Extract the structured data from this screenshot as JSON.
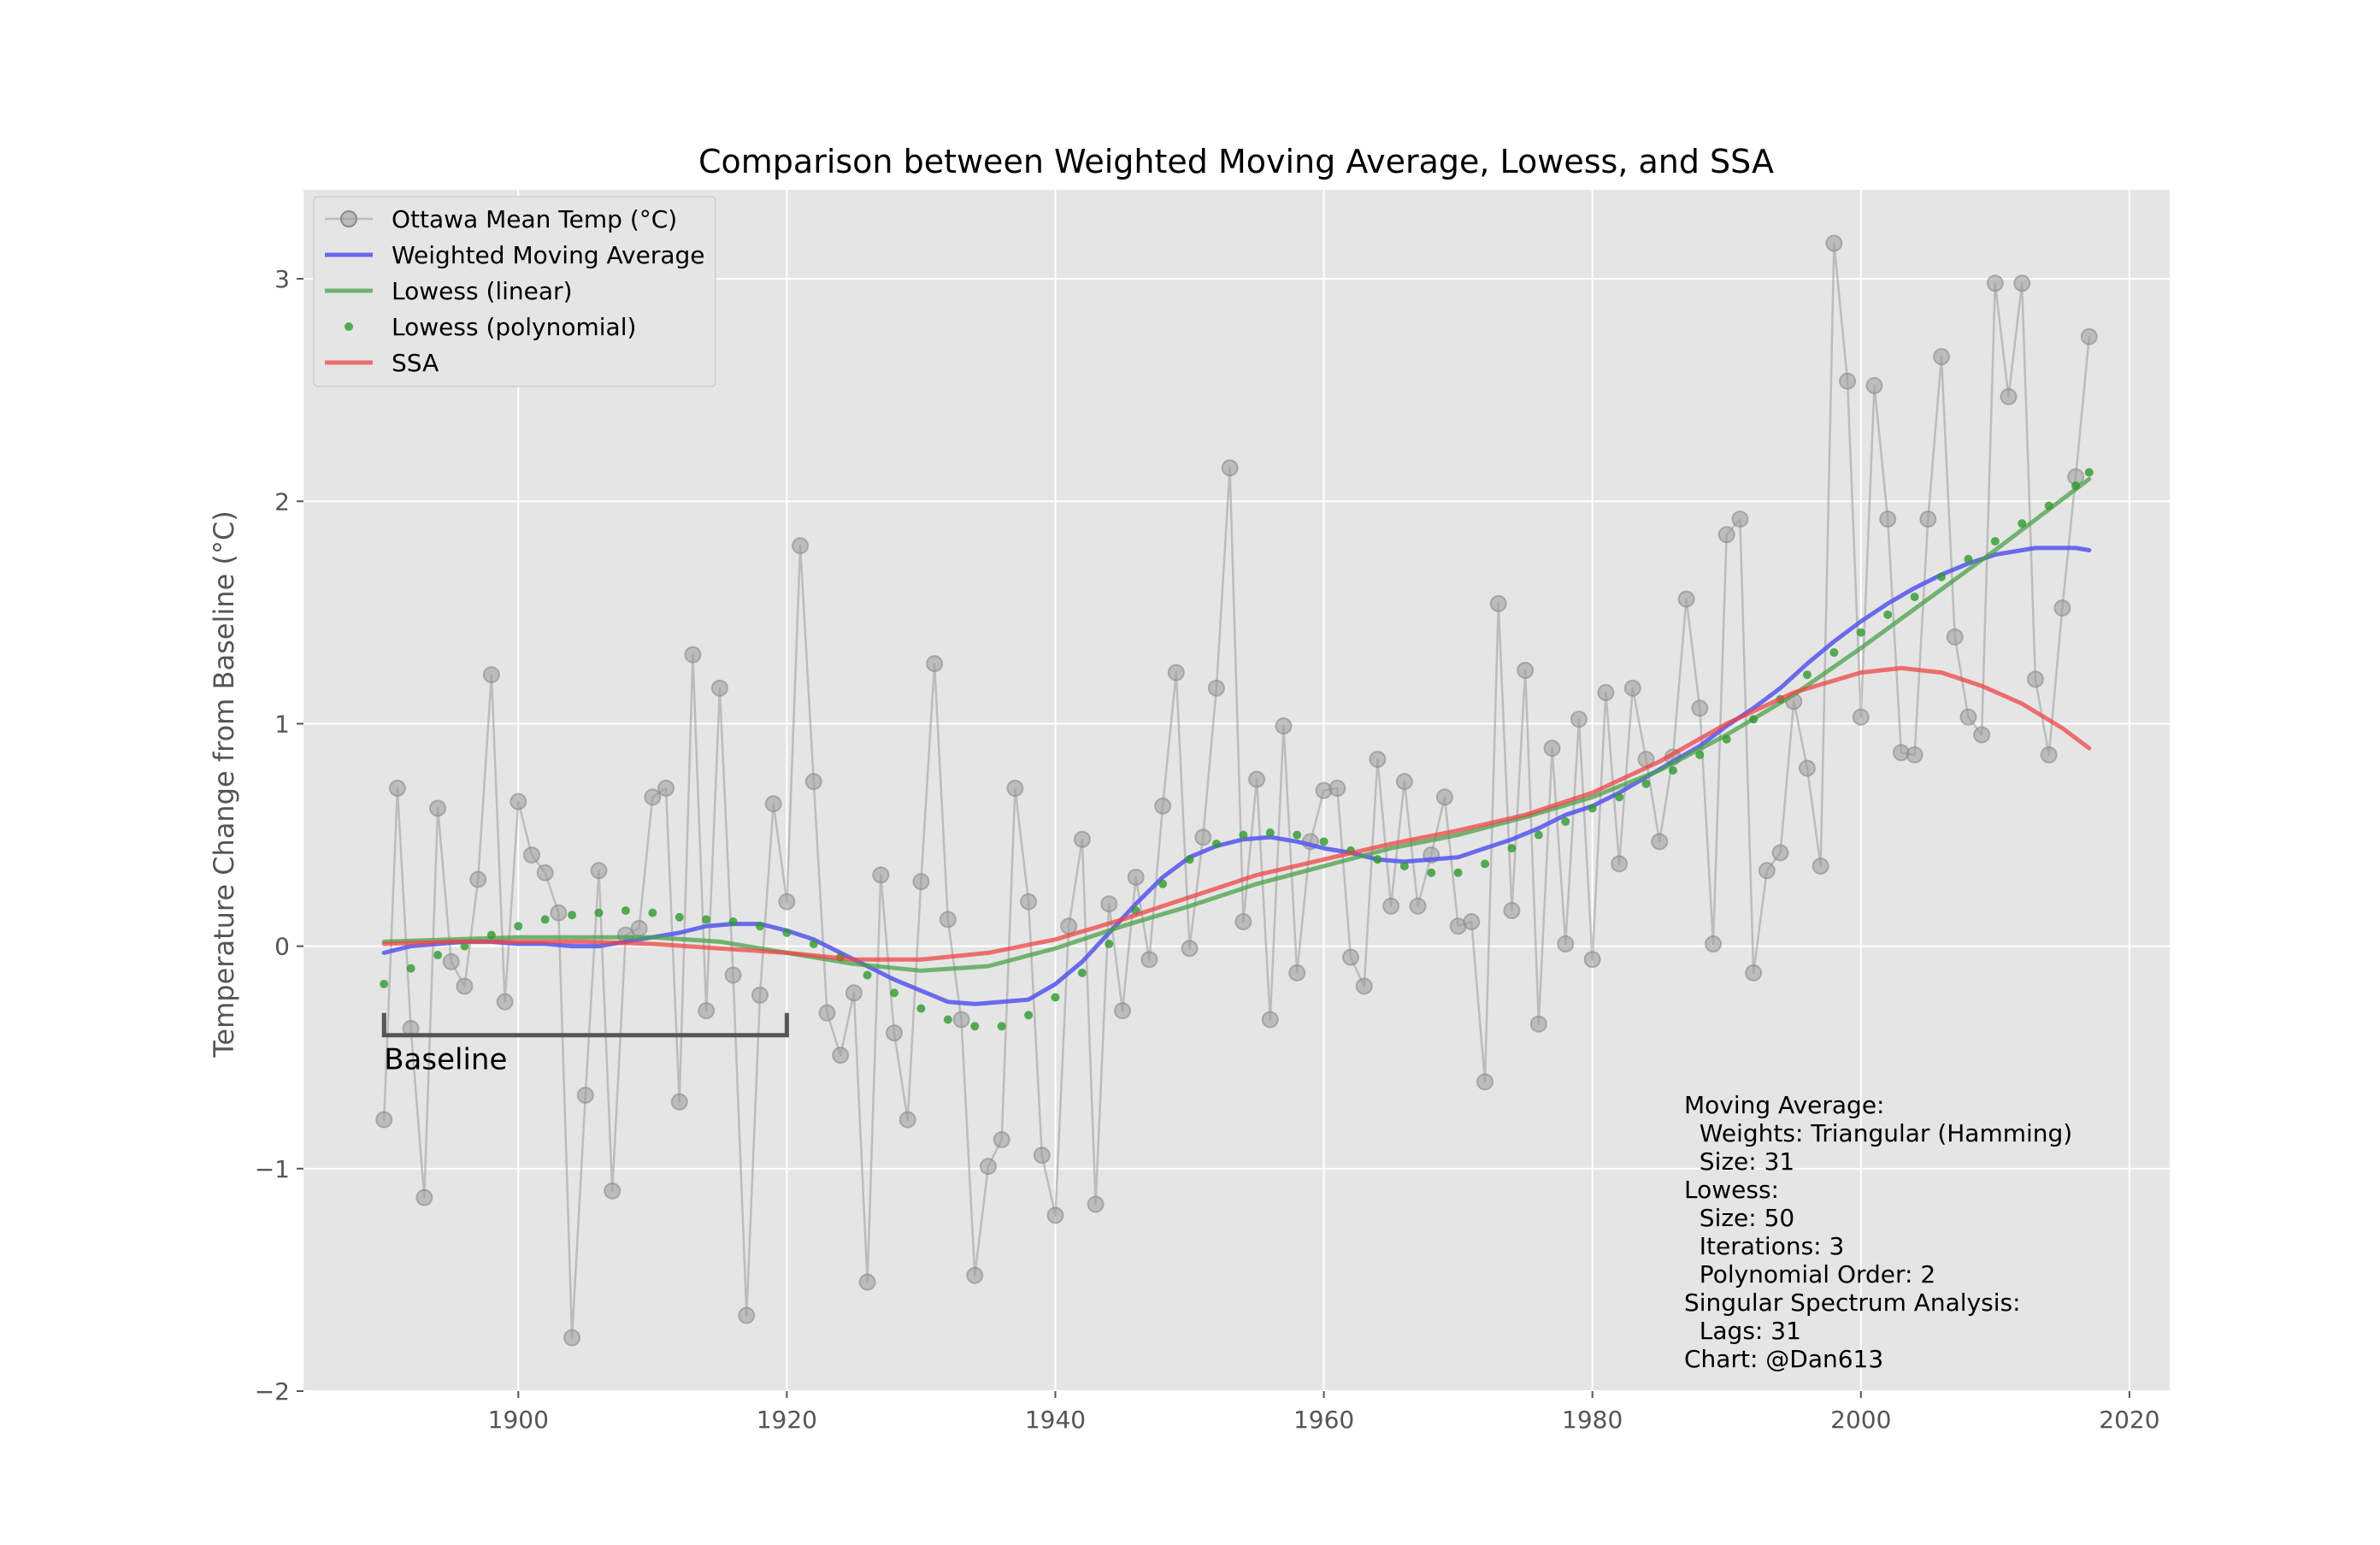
{
  "chart_data": {
    "type": "line",
    "title": "Comparison between Weighted Moving Average, Lowess, and SSA",
    "xlabel": "",
    "ylabel": "Temperature Change from Baseline (°C)",
    "xlim": [
      1884,
      2023
    ],
    "ylim": [
      -2,
      3.4
    ],
    "x_ticks": [
      1900,
      1920,
      1940,
      1960,
      1980,
      2000,
      2020
    ],
    "y_ticks": [
      -2,
      -1,
      0,
      1,
      2,
      3
    ],
    "x_tick_labels": [
      "1900",
      "1920",
      "1940",
      "1960",
      "1980",
      "2000",
      "2020"
    ],
    "y_tick_labels": [
      "−2",
      "−1",
      "0",
      "1",
      "2",
      "3"
    ],
    "grid": true,
    "legend_position": "upper-left",
    "colors": {
      "background": "#e5e5e5",
      "grid": "#ffffff",
      "observed": "#9a9a9a",
      "wma": "#5555ee",
      "lowess_linear": "#4aa04a",
      "lowess_poly": "#2e9a2e",
      "ssa": "#ee4444",
      "baseline_bracket": "#555555"
    },
    "series": [
      {
        "name": "Ottawa Mean Temp (°C)",
        "style": "line-marker",
        "x": [
          1890,
          1891,
          1892,
          1893,
          1894,
          1895,
          1896,
          1897,
          1898,
          1899,
          1900,
          1901,
          1902,
          1903,
          1904,
          1905,
          1906,
          1907,
          1908,
          1909,
          1910,
          1911,
          1912,
          1913,
          1914,
          1915,
          1916,
          1917,
          1918,
          1919,
          1920,
          1921,
          1922,
          1923,
          1924,
          1925,
          1926,
          1927,
          1928,
          1929,
          1930,
          1931,
          1932,
          1933,
          1934,
          1935,
          1936,
          1937,
          1938,
          1939,
          1940,
          1941,
          1942,
          1943,
          1944,
          1945,
          1946,
          1947,
          1948,
          1949,
          1950,
          1951,
          1952,
          1953,
          1954,
          1955,
          1956,
          1957,
          1958,
          1959,
          1960,
          1961,
          1962,
          1963,
          1964,
          1965,
          1966,
          1967,
          1968,
          1969,
          1970,
          1971,
          1972,
          1973,
          1974,
          1975,
          1976,
          1977,
          1978,
          1979,
          1980,
          1981,
          1982,
          1983,
          1984,
          1985,
          1986,
          1987,
          1988,
          1989,
          1990,
          1991,
          1992,
          1993,
          1994,
          1995,
          1996,
          1997,
          1998,
          1999,
          2000,
          2001,
          2002,
          2003,
          2004,
          2005,
          2006,
          2007,
          2008,
          2009,
          2010,
          2011,
          2012,
          2013,
          2014,
          2015,
          2016,
          2017
        ],
        "y": [
          -0.78,
          0.71,
          -0.37,
          -1.13,
          0.62,
          -0.07,
          -0.18,
          0.3,
          1.22,
          -0.25,
          0.65,
          0.41,
          0.33,
          0.15,
          -1.76,
          -0.67,
          0.34,
          -1.1,
          0.05,
          0.08,
          0.67,
          0.71,
          -0.7,
          1.31,
          -0.29,
          1.16,
          -0.13,
          -1.66,
          -0.22,
          0.64,
          0.2,
          1.8,
          0.74,
          -0.3,
          -0.49,
          -0.21,
          -1.51,
          0.32,
          -0.39,
          -0.78,
          0.29,
          1.27,
          0.12,
          -0.33,
          -1.48,
          -0.99,
          -0.87,
          0.71,
          0.2,
          -0.94,
          -1.21,
          0.09,
          0.48,
          -1.16,
          0.19,
          -0.29,
          0.31,
          -0.06,
          0.63,
          1.23,
          -0.01,
          0.49,
          1.16,
          2.15,
          0.11,
          0.75,
          -0.33,
          0.99,
          -0.12,
          0.47,
          0.7,
          0.71,
          -0.05,
          -0.18,
          0.84,
          0.18,
          0.74,
          0.18,
          0.41,
          0.67,
          0.09,
          0.11,
          -0.61,
          1.54,
          0.16,
          1.24,
          -0.35,
          0.89,
          0.01,
          1.02,
          -0.06,
          1.14,
          0.37,
          1.16,
          0.84,
          0.47,
          0.85,
          1.56,
          1.07,
          0.01,
          1.85,
          1.92,
          -0.12,
          0.34,
          0.42,
          1.1,
          0.8,
          0.36,
          3.16,
          2.54,
          1.03,
          2.52,
          1.92,
          0.87,
          0.86,
          1.92,
          2.65,
          1.39,
          1.03,
          0.95,
          2.98,
          2.47,
          2.98,
          1.2,
          0.86,
          1.52,
          2.11,
          2.74
        ]
      },
      {
        "name": "Weighted Moving Average",
        "style": "line",
        "x": [
          1890,
          1892,
          1894,
          1896,
          1898,
          1900,
          1902,
          1904,
          1906,
          1908,
          1910,
          1912,
          1914,
          1916,
          1918,
          1920,
          1922,
          1924,
          1926,
          1928,
          1930,
          1932,
          1934,
          1936,
          1938,
          1940,
          1942,
          1944,
          1946,
          1948,
          1950,
          1952,
          1954,
          1956,
          1958,
          1960,
          1962,
          1964,
          1966,
          1968,
          1970,
          1972,
          1974,
          1976,
          1978,
          1980,
          1982,
          1984,
          1986,
          1988,
          1990,
          1992,
          1994,
          1996,
          1998,
          2000,
          2002,
          2004,
          2006,
          2008,
          2010,
          2012,
          2013,
          2014,
          2015,
          2016,
          2017
        ],
        "y": [
          -0.03,
          0.0,
          0.01,
          0.02,
          0.02,
          0.01,
          0.01,
          0.0,
          0.0,
          0.02,
          0.04,
          0.06,
          0.09,
          0.1,
          0.1,
          0.07,
          0.03,
          -0.03,
          -0.09,
          -0.15,
          -0.2,
          -0.25,
          -0.26,
          -0.25,
          -0.24,
          -0.17,
          -0.07,
          0.06,
          0.19,
          0.31,
          0.4,
          0.45,
          0.48,
          0.49,
          0.47,
          0.44,
          0.42,
          0.39,
          0.38,
          0.39,
          0.4,
          0.44,
          0.48,
          0.53,
          0.59,
          0.63,
          0.69,
          0.76,
          0.83,
          0.9,
          0.99,
          1.07,
          1.16,
          1.27,
          1.37,
          1.46,
          1.54,
          1.61,
          1.67,
          1.72,
          1.76,
          1.78,
          1.79,
          1.79,
          1.79,
          1.79,
          1.78
        ]
      },
      {
        "name": "Lowess (linear)",
        "style": "line",
        "x": [
          1890,
          1895,
          1900,
          1905,
          1910,
          1915,
          1920,
          1925,
          1930,
          1935,
          1940,
          1945,
          1950,
          1955,
          1960,
          1965,
          1970,
          1975,
          1980,
          1985,
          1990,
          1995,
          2000,
          2005,
          2010,
          2017
        ],
        "y": [
          0.02,
          0.03,
          0.04,
          0.04,
          0.04,
          0.02,
          -0.03,
          -0.08,
          -0.11,
          -0.09,
          -0.01,
          0.09,
          0.18,
          0.28,
          0.36,
          0.44,
          0.5,
          0.58,
          0.67,
          0.79,
          0.95,
          1.13,
          1.34,
          1.56,
          1.78,
          2.1
        ]
      },
      {
        "name": "Lowess (polynomial)",
        "style": "dots",
        "x": [
          1890,
          1892,
          1894,
          1896,
          1898,
          1900,
          1902,
          1904,
          1906,
          1908,
          1910,
          1912,
          1914,
          1916,
          1918,
          1920,
          1922,
          1924,
          1926,
          1928,
          1930,
          1932,
          1934,
          1936,
          1938,
          1940,
          1942,
          1944,
          1946,
          1948,
          1950,
          1952,
          1954,
          1956,
          1958,
          1960,
          1962,
          1964,
          1966,
          1968,
          1970,
          1972,
          1974,
          1976,
          1978,
          1980,
          1982,
          1984,
          1986,
          1988,
          1990,
          1992,
          1994,
          1996,
          1998,
          2000,
          2002,
          2004,
          2006,
          2008,
          2010,
          2012,
          2014,
          2016,
          2017
        ],
        "y": [
          -0.17,
          -0.1,
          -0.04,
          0.0,
          0.05,
          0.09,
          0.12,
          0.14,
          0.15,
          0.16,
          0.15,
          0.13,
          0.12,
          0.11,
          0.09,
          0.06,
          0.01,
          -0.05,
          -0.13,
          -0.21,
          -0.28,
          -0.33,
          -0.36,
          -0.36,
          -0.31,
          -0.23,
          -0.12,
          0.01,
          0.16,
          0.28,
          0.39,
          0.46,
          0.5,
          0.51,
          0.5,
          0.47,
          0.43,
          0.39,
          0.36,
          0.33,
          0.33,
          0.37,
          0.44,
          0.5,
          0.56,
          0.62,
          0.67,
          0.73,
          0.79,
          0.86,
          0.93,
          1.02,
          1.11,
          1.22,
          1.32,
          1.41,
          1.49,
          1.57,
          1.66,
          1.74,
          1.82,
          1.9,
          1.98,
          2.07,
          2.13
        ]
      },
      {
        "name": "SSA",
        "style": "line",
        "x": [
          1890,
          1895,
          1900,
          1905,
          1910,
          1915,
          1920,
          1925,
          1930,
          1935,
          1940,
          1945,
          1950,
          1955,
          1960,
          1965,
          1970,
          1975,
          1980,
          1985,
          1990,
          1995,
          2000,
          2003,
          2006,
          2009,
          2012,
          2015,
          2017
        ],
        "y": [
          0.01,
          0.02,
          0.02,
          0.02,
          0.01,
          -0.01,
          -0.03,
          -0.06,
          -0.06,
          -0.03,
          0.03,
          0.12,
          0.22,
          0.32,
          0.39,
          0.46,
          0.52,
          0.59,
          0.69,
          0.83,
          1.0,
          1.14,
          1.23,
          1.25,
          1.23,
          1.17,
          1.09,
          0.98,
          0.89
        ]
      }
    ],
    "legend_entries": [
      "Ottawa Mean Temp (°C)",
      "Weighted Moving Average",
      "Lowess (linear)",
      "Lowess (polynomial)",
      "SSA"
    ],
    "baseline_annotation": {
      "label": "Baseline",
      "x_start": 1890,
      "x_end": 1920,
      "y": -0.4
    },
    "notes": [
      "Moving Average:",
      "  Weights: Triangular (Hamming)",
      "  Size: 31",
      "Lowess:",
      "  Size: 50",
      "  Iterations: 3",
      "  Polynomial Order: 2",
      "Singular Spectrum Analysis:",
      "  Lags: 31",
      "Chart: @Dan613"
    ]
  }
}
